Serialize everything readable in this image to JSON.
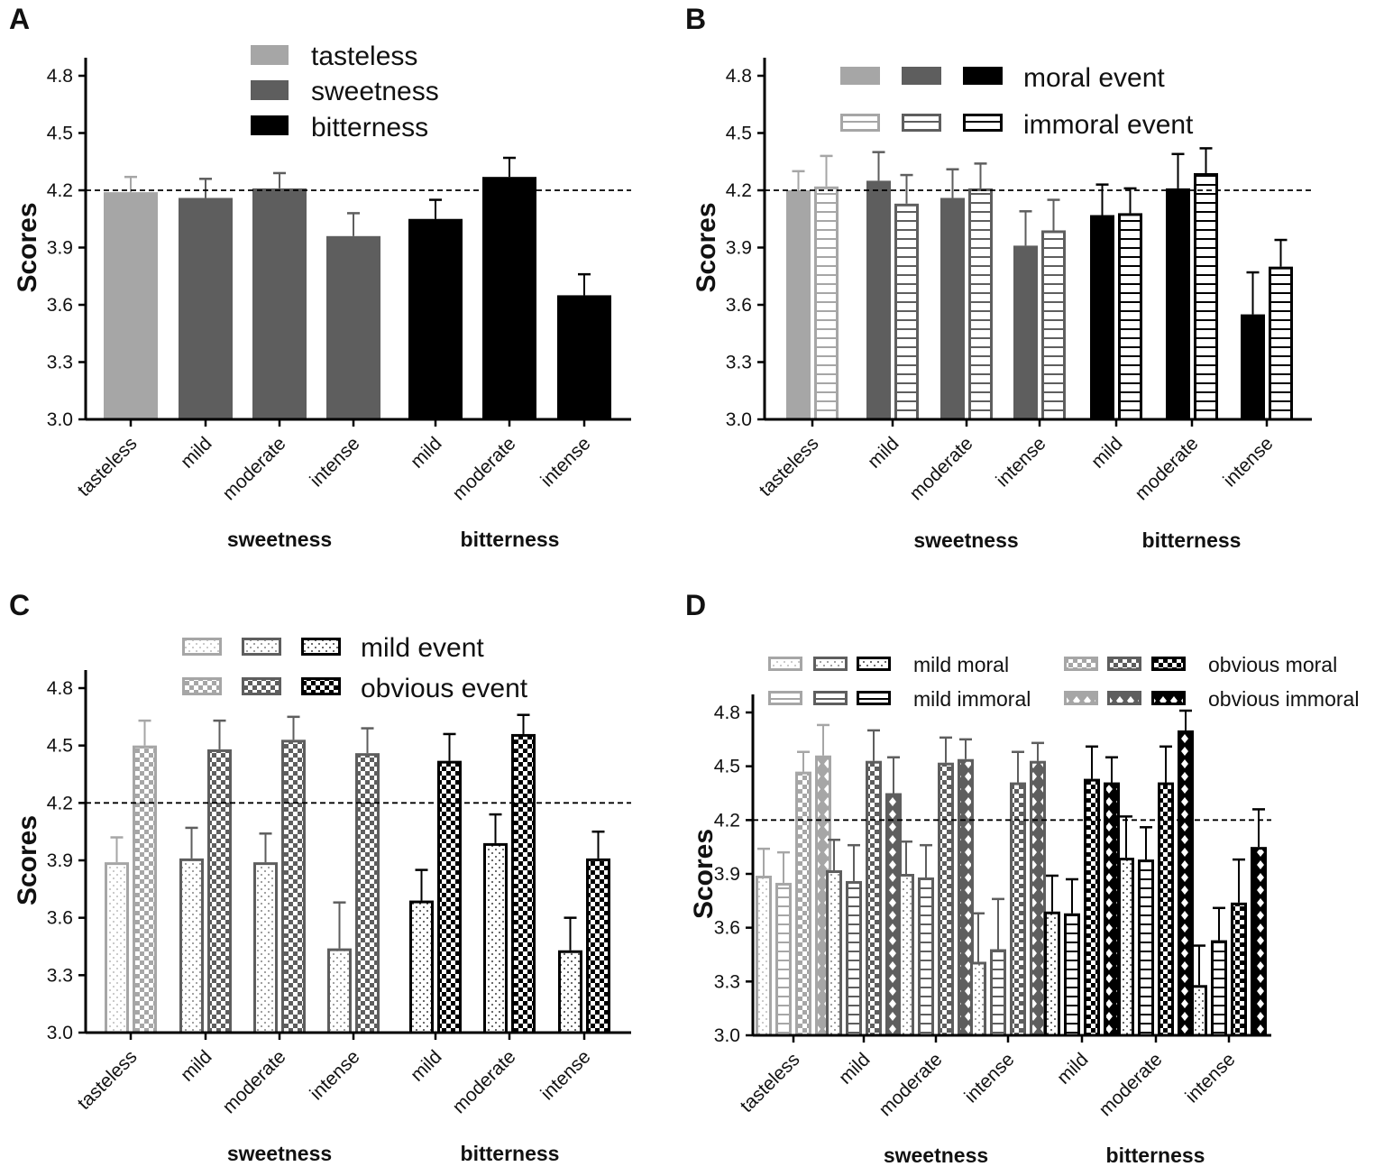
{
  "colors": [
    "#a6a6a6",
    "#5e5e5e",
    "#000000"
  ],
  "chart_data": [
    {
      "panel": "A",
      "type": "bar",
      "ylabel": "Scores",
      "ylim": [
        3.0,
        4.8
      ],
      "yticks": [
        "3.0",
        "3.3",
        "3.6",
        "3.9",
        "4.2",
        "4.5",
        "4.8"
      ],
      "reference_line": 4.2,
      "categories": [
        "tasteless",
        "mild",
        "moderate",
        "intense",
        "mild",
        "moderate",
        "intense"
      ],
      "category_color": [
        0,
        1,
        1,
        1,
        2,
        2,
        2
      ],
      "groups": [
        {
          "label": "sweetness",
          "span": [
            1,
            3
          ]
        },
        {
          "label": "bitterness",
          "span": [
            4,
            6
          ]
        }
      ],
      "legend": [
        "tasteless",
        "sweetness",
        "bitterness"
      ],
      "series": [
        {
          "name": "score",
          "style": "solid",
          "values": [
            4.19,
            4.16,
            4.21,
            3.96,
            4.05,
            4.27,
            3.65
          ],
          "errors": [
            0.08,
            0.1,
            0.08,
            0.12,
            0.1,
            0.1,
            0.11
          ]
        }
      ]
    },
    {
      "panel": "B",
      "type": "bar",
      "ylabel": "Scores",
      "ylim": [
        3.0,
        4.8
      ],
      "yticks": [
        "3.0",
        "3.3",
        "3.6",
        "3.9",
        "4.2",
        "4.5",
        "4.8"
      ],
      "reference_line": 4.2,
      "categories": [
        "tasteless",
        "mild",
        "moderate",
        "intense",
        "mild",
        "moderate",
        "intense"
      ],
      "category_color": [
        0,
        1,
        1,
        1,
        2,
        2,
        2
      ],
      "groups": [
        {
          "label": "sweetness",
          "span": [
            1,
            3
          ]
        },
        {
          "label": "bitterness",
          "span": [
            4,
            6
          ]
        }
      ],
      "legend": [
        "moral event",
        "immoral event"
      ],
      "series": [
        {
          "name": "moral event",
          "style": "solid",
          "values": [
            4.2,
            4.25,
            4.16,
            3.91,
            4.07,
            4.21,
            3.55
          ],
          "errors": [
            0.1,
            0.15,
            0.15,
            0.18,
            0.16,
            0.18,
            0.22
          ]
        },
        {
          "name": "immoral event",
          "style": "hlines",
          "values": [
            4.22,
            4.13,
            4.21,
            3.99,
            4.08,
            4.29,
            3.8
          ],
          "errors": [
            0.16,
            0.15,
            0.13,
            0.16,
            0.13,
            0.13,
            0.14
          ]
        }
      ]
    },
    {
      "panel": "C",
      "type": "bar",
      "ylabel": "Scores",
      "ylim": [
        3.0,
        4.8
      ],
      "yticks": [
        "3.0",
        "3.3",
        "3.6",
        "3.9",
        "4.2",
        "4.5",
        "4.8"
      ],
      "reference_line": 4.2,
      "categories": [
        "tasteless",
        "mild",
        "moderate",
        "intense",
        "mild",
        "moderate",
        "intense"
      ],
      "category_color": [
        0,
        1,
        1,
        1,
        2,
        2,
        2
      ],
      "groups": [
        {
          "label": "sweetness",
          "span": [
            1,
            3
          ]
        },
        {
          "label": "bitterness",
          "span": [
            4,
            6
          ]
        }
      ],
      "legend": [
        "mild event",
        "obvious event"
      ],
      "series": [
        {
          "name": "mild event",
          "style": "dots",
          "values": [
            3.89,
            3.91,
            3.89,
            3.44,
            3.69,
            3.99,
            3.43
          ],
          "errors": [
            0.13,
            0.16,
            0.15,
            0.24,
            0.16,
            0.15,
            0.17
          ]
        },
        {
          "name": "obvious event",
          "style": "checker",
          "values": [
            4.5,
            4.48,
            4.53,
            4.46,
            4.42,
            4.56,
            3.91
          ],
          "errors": [
            0.13,
            0.15,
            0.12,
            0.13,
            0.14,
            0.1,
            0.14
          ]
        }
      ]
    },
    {
      "panel": "D",
      "type": "bar",
      "ylabel": "Scores",
      "ylim": [
        3.0,
        4.8
      ],
      "yticks": [
        "3.0",
        "3.3",
        "3.6",
        "3.9",
        "4.2",
        "4.5",
        "4.8"
      ],
      "reference_line": 4.2,
      "categories": [
        "tasteless",
        "mild",
        "moderate",
        "intense",
        "mild",
        "moderate",
        "intense"
      ],
      "category_color": [
        0,
        1,
        1,
        1,
        2,
        2,
        2
      ],
      "groups": [
        {
          "label": "sweetness",
          "span": [
            1,
            3
          ]
        },
        {
          "label": "bitterness",
          "span": [
            4,
            6
          ]
        }
      ],
      "legend": [
        "mild moral",
        "mild immoral",
        "obvious moral",
        "obvious immoral"
      ],
      "series": [
        {
          "name": "mild moral",
          "style": "dots",
          "values": [
            3.89,
            3.92,
            3.9,
            3.41,
            3.69,
            3.99,
            3.28
          ],
          "errors": [
            0.15,
            0.17,
            0.18,
            0.27,
            0.2,
            0.23,
            0.22
          ]
        },
        {
          "name": "mild immoral",
          "style": "hlines",
          "values": [
            3.85,
            3.86,
            3.88,
            3.48,
            3.68,
            3.98,
            3.53
          ],
          "errors": [
            0.17,
            0.2,
            0.18,
            0.28,
            0.19,
            0.18,
            0.18
          ]
        },
        {
          "name": "obvious moral",
          "style": "checker",
          "values": [
            4.47,
            4.53,
            4.52,
            4.41,
            4.43,
            4.41,
            3.74
          ],
          "errors": [
            0.11,
            0.17,
            0.14,
            0.17,
            0.18,
            0.2,
            0.24
          ]
        },
        {
          "name": "obvious immoral",
          "style": "diamond",
          "values": [
            4.56,
            4.35,
            4.54,
            4.53,
            4.41,
            4.7,
            4.05
          ],
          "errors": [
            0.17,
            0.2,
            0.11,
            0.1,
            0.14,
            0.11,
            0.21
          ]
        }
      ]
    }
  ]
}
